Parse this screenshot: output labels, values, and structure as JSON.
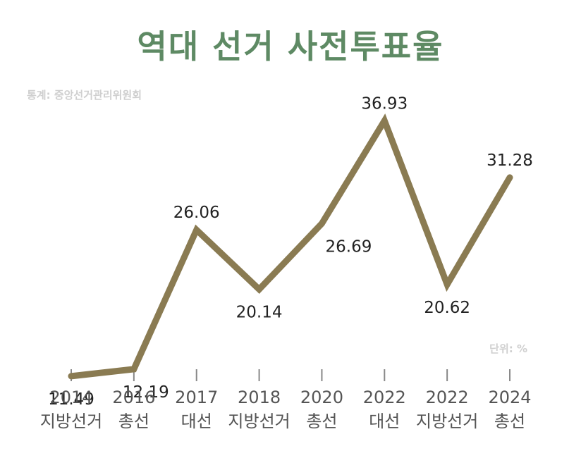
{
  "title": "역대 선거 사전투표율",
  "source": "통계: 중앙선거관리위원회",
  "unit": "단위: %",
  "colors": {
    "title": "#5e8a64",
    "line": "#8a7b52",
    "muted": "#cfcfcf",
    "label": "#222222",
    "tick_text": "#555555",
    "tick": "#888888"
  },
  "chart_data": {
    "type": "line",
    "categories": [
      [
        "2014",
        "지방선거"
      ],
      [
        "2016",
        "총선"
      ],
      [
        "2017",
        "대선"
      ],
      [
        "2018",
        "지방선거"
      ],
      [
        "2020",
        "총선"
      ],
      [
        "2022",
        "대선"
      ],
      [
        "2022",
        "지방선거"
      ],
      [
        "2024",
        "총선"
      ]
    ],
    "values": [
      11.49,
      12.19,
      26.06,
      20.14,
      26.69,
      36.93,
      20.62,
      31.28
    ],
    "value_labels": [
      "11.49",
      "12.19",
      "26.06",
      "20.14",
      "26.69",
      "36.93",
      "20.62",
      "31.28"
    ],
    "grid": false,
    "legend": false
  }
}
